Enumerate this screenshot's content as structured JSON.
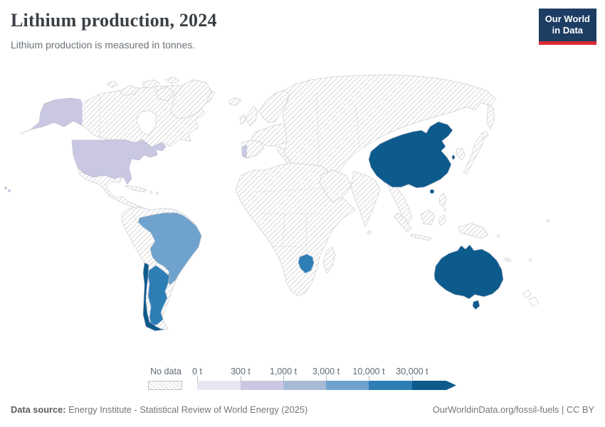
{
  "header": {
    "title": "Lithium production, 2024",
    "subtitle": "Lithium production is measured in tonnes.",
    "logo": {
      "line1": "Our World",
      "line2": "in Data"
    }
  },
  "legend": {
    "no_data_label": "No data",
    "ticks": [
      "0 t",
      "300 t",
      "1,000 t",
      "3,000 t",
      "10,000 t",
      "30,000 t"
    ],
    "bin_colors": [
      "#e9e6f2",
      "#cac7e2",
      "#a6bad6",
      "#6fa3cd",
      "#2e7eb6",
      "#0d5a8c"
    ]
  },
  "footer": {
    "source_label": "Data source:",
    "source_text": " Energy Institute - Statistical Review of World Energy (2025)",
    "credit": "OurWorldinData.org/fossil-fuels | CC BY"
  },
  "colors": {
    "logo_background": "#1d3d63",
    "logo_stripe": "#dc2a33",
    "no_data_hatch_line": "#dcdcdc",
    "country_border": "#c9ced2"
  },
  "chart_data": {
    "type": "choropleth_map",
    "title": "Lithium production, 2024",
    "subtitle": "Lithium production is measured in tonnes.",
    "unit": "t",
    "legend_bins": [
      {
        "label": "0 t",
        "color": "#e9e6f2"
      },
      {
        "label": "300 t",
        "color": "#cac7e2"
      },
      {
        "label": "1,000 t",
        "color": "#a6bad6"
      },
      {
        "label": "3,000 t",
        "color": "#6fa3cd"
      },
      {
        "label": "10,000 t",
        "color": "#2e7eb6"
      },
      {
        "label": "30,000 t",
        "color": "#0d5a8c"
      }
    ],
    "no_data": "All countries not listed below are shown hatched (No data)",
    "values": [
      {
        "entity": "United States",
        "bin": "300 t – 1,000 t",
        "color": "#cac7e2"
      },
      {
        "entity": "Portugal",
        "bin": "300 t – 1,000 t",
        "color": "#cac7e2"
      },
      {
        "entity": "Brazil",
        "bin": "3,000 t – 10,000 t",
        "color": "#6fa3cd"
      },
      {
        "entity": "Argentina",
        "bin": "10,000 t – 30,000 t",
        "color": "#2e7eb6"
      },
      {
        "entity": "Zimbabwe",
        "bin": "10,000 t – 30,000 t",
        "color": "#2e7eb6"
      },
      {
        "entity": "Chile",
        "bin": "30,000 t and over",
        "color": "#0d5a8c"
      },
      {
        "entity": "China",
        "bin": "30,000 t and over",
        "color": "#0d5a8c"
      },
      {
        "entity": "Australia",
        "bin": "30,000 t and over",
        "color": "#0d5a8c"
      }
    ]
  },
  "map": {
    "highlighted_countries": [
      {
        "id": "united-states",
        "name": "United States",
        "color": "#cac7e2"
      },
      {
        "id": "portugal",
        "name": "Portugal",
        "color": "#cac7e2"
      },
      {
        "id": "brazil",
        "name": "Brazil",
        "color": "#6fa3cd"
      },
      {
        "id": "argentina",
        "name": "Argentina",
        "color": "#2e7eb6"
      },
      {
        "id": "zimbabwe",
        "name": "Zimbabwe",
        "color": "#2e7eb6"
      },
      {
        "id": "chile",
        "name": "Chile",
        "color": "#0d5a8c"
      },
      {
        "id": "china",
        "name": "China",
        "color": "#0d5a8c"
      },
      {
        "id": "australia",
        "name": "Australia",
        "color": "#0d5a8c"
      }
    ]
  }
}
